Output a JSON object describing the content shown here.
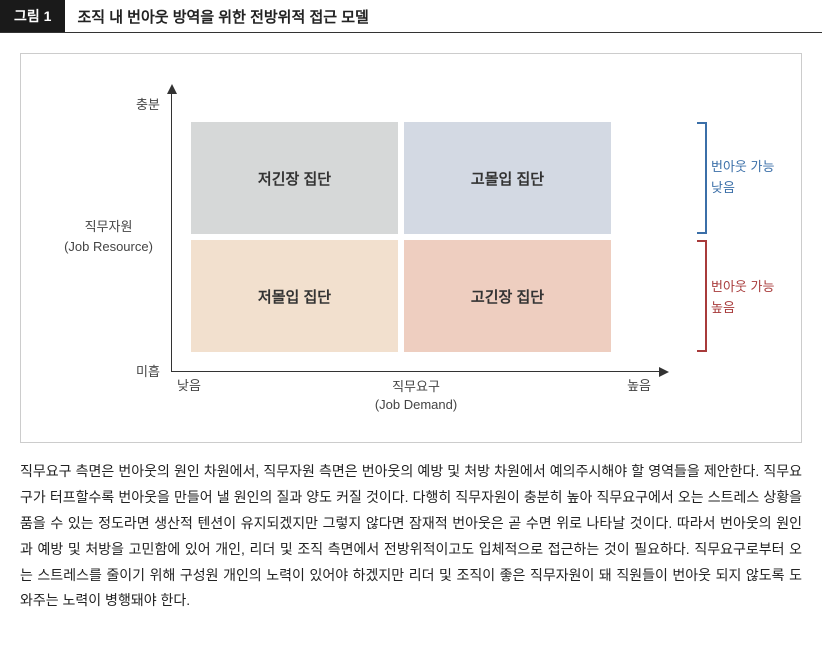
{
  "header": {
    "badge": "그림 1",
    "title": "조직 내 번아웃 방역을 위한 전방위적 접근 모델"
  },
  "chart": {
    "yAxis": {
      "title_line1": "직무자원",
      "title_line2": "(Job Resource)",
      "high": "충분",
      "low": "미흡"
    },
    "xAxis": {
      "title_line1": "직무요구",
      "title_line2": "(Job Demand)",
      "low": "낮음",
      "high": "높음"
    },
    "quadrants": {
      "top_left": {
        "label": "저긴장 집단",
        "bg": "#d6d8d8"
      },
      "top_right": {
        "label": "고몰입 집단",
        "bg": "#d3d9e3"
      },
      "bot_left": {
        "label": "저몰입 집단",
        "bg": "#f2e0ce"
      },
      "bot_right": {
        "label": "고긴장 집단",
        "bg": "#eecec0"
      }
    },
    "sideLabels": {
      "top": {
        "line1": "번아웃 가능",
        "line2": "낮음",
        "color": "#3b6fa8"
      },
      "bottom": {
        "line1": "번아웃 가능",
        "line2": "높음",
        "color": "#a83b3b"
      }
    },
    "bracketColors": {
      "top": "#3b6fa8",
      "bottom": "#a83b3b"
    }
  },
  "description": "직무요구 측면은 번아웃의 원인 차원에서, 직무자원 측면은 번아웃의 예방 및 처방 차원에서 예의주시해야 할 영역들을 제안한다. 직무요구가 터프할수록 번아웃을 만들어 낼 원인의 질과 양도 커질 것이다. 다행히 직무자원이 충분히 높아 직무요구에서 오는 스트레스 상황을 품을 수 있는 정도라면 생산적 텐션이 유지되겠지만 그렇지 않다면 잠재적 번아웃은 곧 수면 위로 나타날 것이다. 따라서 번아웃의 원인과 예방 및 처방을 고민함에 있어 개인, 리더 및 조직 측면에서 전방위적이고도 입체적으로 접근하는 것이 필요하다. 직무요구로부터 오는 스트레스를 줄이기 위해 구성원 개인의 노력이 있어야 하겠지만 리더 및 조직이 좋은 직무자원이 돼 직원들이 번아웃 되지 않도록 도와주는 노력이 병행돼야 한다."
}
